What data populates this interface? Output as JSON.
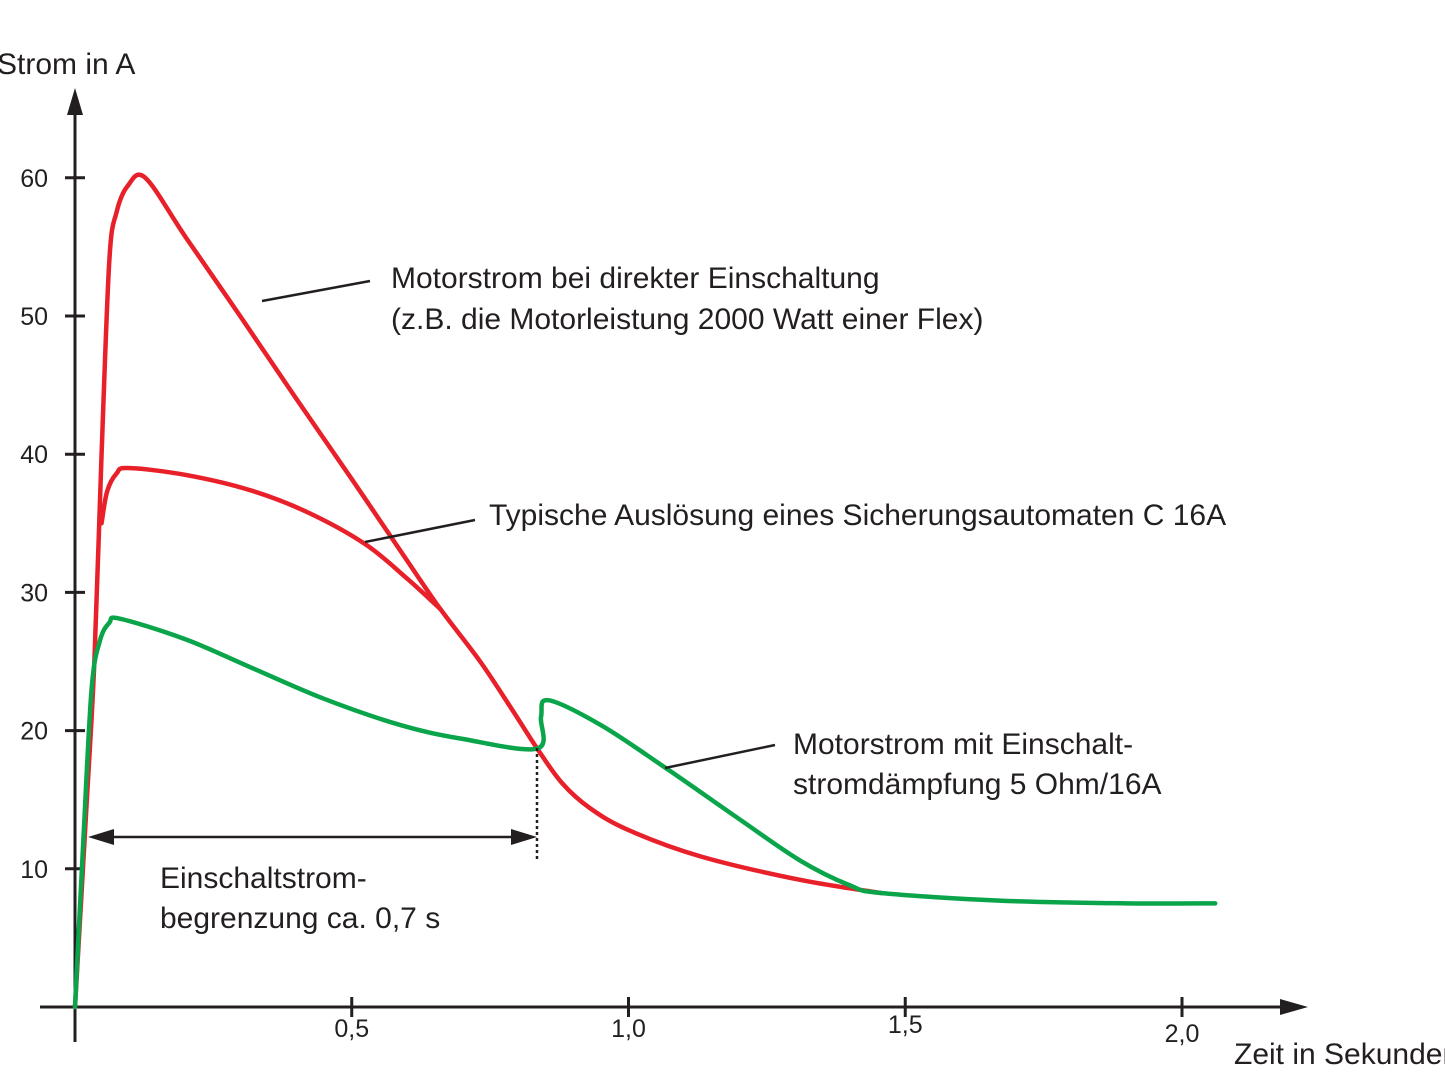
{
  "chart_data": {
    "type": "line",
    "xlabel": "Zeit in Sekunden",
    "ylabel": "Strom in A",
    "xlim": [
      0,
      2.2
    ],
    "ylim": [
      0,
      65
    ],
    "x_ticks": [
      {
        "v": 0.5,
        "label": "0,5"
      },
      {
        "v": 1.0,
        "label": "1,0"
      },
      {
        "v": 1.5,
        "label": "1,5"
      },
      {
        "v": 2.0,
        "label": "2,0"
      }
    ],
    "y_ticks": [
      {
        "v": 10,
        "label": "10"
      },
      {
        "v": 20,
        "label": "20"
      },
      {
        "v": 30,
        "label": "30"
      },
      {
        "v": 40,
        "label": "40"
      },
      {
        "v": 50,
        "label": "50"
      },
      {
        "v": 60,
        "label": "60"
      }
    ],
    "grid": false,
    "series": [
      {
        "color": "#e8202a",
        "points": [
          [
            0,
            0
          ],
          [
            0.02,
            14
          ],
          [
            0.035,
            25
          ],
          [
            0.048,
            40
          ],
          [
            0.062,
            54
          ],
          [
            0.075,
            57.5
          ],
          [
            0.095,
            59.4
          ],
          [
            0.127,
            60
          ],
          [
            0.2,
            55.7
          ],
          [
            0.3,
            49.9
          ],
          [
            0.4,
            44
          ],
          [
            0.5,
            38.2
          ],
          [
            0.6,
            32.3
          ],
          [
            0.66,
            28.8
          ],
          [
            0.732,
            25
          ],
          [
            0.79,
            21.5
          ],
          [
            0.835,
            18.7
          ],
          [
            0.88,
            16.2
          ],
          [
            0.93,
            14.4
          ],
          [
            1.0,
            12.8
          ],
          [
            1.13,
            10.9
          ],
          [
            1.31,
            9.2
          ],
          [
            1.456,
            8.25
          ]
        ]
      },
      {
        "color": "#e8202a",
        "points": [
          [
            0.048,
            35
          ],
          [
            0.058,
            37.3
          ],
          [
            0.075,
            38.6
          ],
          [
            0.096,
            39
          ],
          [
            0.2,
            38.5
          ],
          [
            0.316,
            37.4
          ],
          [
            0.42,
            35.8
          ],
          [
            0.524,
            33.5
          ],
          [
            0.6,
            31
          ],
          [
            0.66,
            28.8
          ]
        ]
      },
      {
        "color": "#0aa54a",
        "points": [
          [
            0,
            0
          ],
          [
            0.015,
            12
          ],
          [
            0.03,
            23
          ],
          [
            0.045,
            26.5
          ],
          [
            0.062,
            27.8
          ],
          [
            0.081,
            28.1
          ],
          [
            0.2,
            26.6
          ],
          [
            0.316,
            24.6
          ],
          [
            0.45,
            22.3
          ],
          [
            0.588,
            20.4
          ],
          [
            0.7,
            19.4
          ],
          [
            0.835,
            18.7
          ],
          [
            0.842,
            21
          ],
          [
            0.855,
            22.2
          ],
          [
            0.95,
            20.4
          ],
          [
            1.067,
            17.3
          ],
          [
            1.2,
            13.6
          ],
          [
            1.31,
            10.6
          ],
          [
            1.4,
            8.8
          ],
          [
            1.456,
            8.25
          ],
          [
            1.67,
            7.7
          ],
          [
            1.9,
            7.5
          ],
          [
            2.06,
            7.5
          ]
        ]
      }
    ],
    "annotations": [
      {
        "lines": [
          "Motorstrom bei direkter Einschaltung",
          "(z.B. die Motorleistung 2000 Watt einer Flex)"
        ]
      },
      {
        "lines": [
          "Typische Auslösung eines Sicherungsautomaten C 16A"
        ]
      },
      {
        "lines": [
          "Motorstrom mit Einschalt-",
          "stromdämpfung 5 Ohm/16A"
        ]
      },
      {
        "lines": [
          "Einschaltstrom-",
          "begrenzung ca. 0,7 s"
        ]
      }
    ]
  }
}
